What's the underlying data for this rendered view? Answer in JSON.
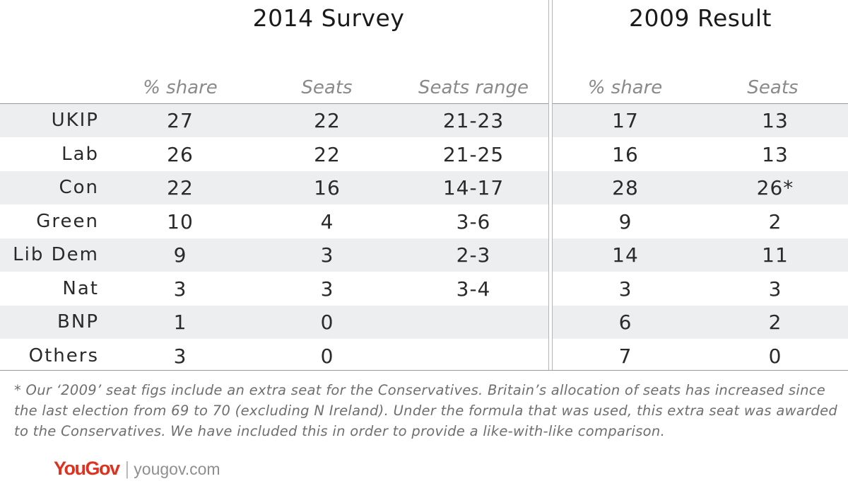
{
  "titles": {
    "survey": "2014 Survey",
    "result": "2009 Result"
  },
  "columns": [
    "% share",
    "Seats",
    "Seats range",
    "% share",
    "Seats"
  ],
  "chart_data": {
    "type": "table",
    "groups": [
      "2014 Survey",
      "2009 Result"
    ],
    "columns": [
      "% share",
      "Seats",
      "Seats range",
      "% share",
      "Seats"
    ],
    "rows": [
      {
        "party": "UKIP",
        "values": [
          "27",
          "22",
          "21-23",
          "17",
          "13"
        ]
      },
      {
        "party": "Lab",
        "values": [
          "26",
          "22",
          "21-25",
          "16",
          "13"
        ]
      },
      {
        "party": "Con",
        "values": [
          "22",
          "16",
          "14-17",
          "28",
          "26*"
        ]
      },
      {
        "party": "Green",
        "values": [
          "10",
          "4",
          "3-6",
          "9",
          "2"
        ]
      },
      {
        "party": "Lib Dem",
        "values": [
          "9",
          "3",
          "2-3",
          "14",
          "11"
        ]
      },
      {
        "party": "Nat",
        "values": [
          "3",
          "3",
          "3-4",
          "3",
          "3"
        ]
      },
      {
        "party": "BNP",
        "values": [
          "1",
          "0",
          "",
          "6",
          "2"
        ]
      },
      {
        "party": "Others",
        "values": [
          "3",
          "0",
          "",
          "7",
          "0"
        ]
      }
    ]
  },
  "footnote": "* Our ‘2009’ seat figs include an extra seat for the Conservatives. Britain’s allocation of seats has increased since the last election from 69 to 70 (excluding N Ireland). Under the formula that was used, this extra seat was awarded to the Conservatives. We have included this in order to provide a like-with-like comparison.",
  "brand": {
    "logo": "YouGov",
    "separator": "|",
    "url": "yougov.com"
  },
  "colors": {
    "row_shade": "#eceeef",
    "header_text": "#8a8a8a",
    "logo": "#e0301e"
  }
}
